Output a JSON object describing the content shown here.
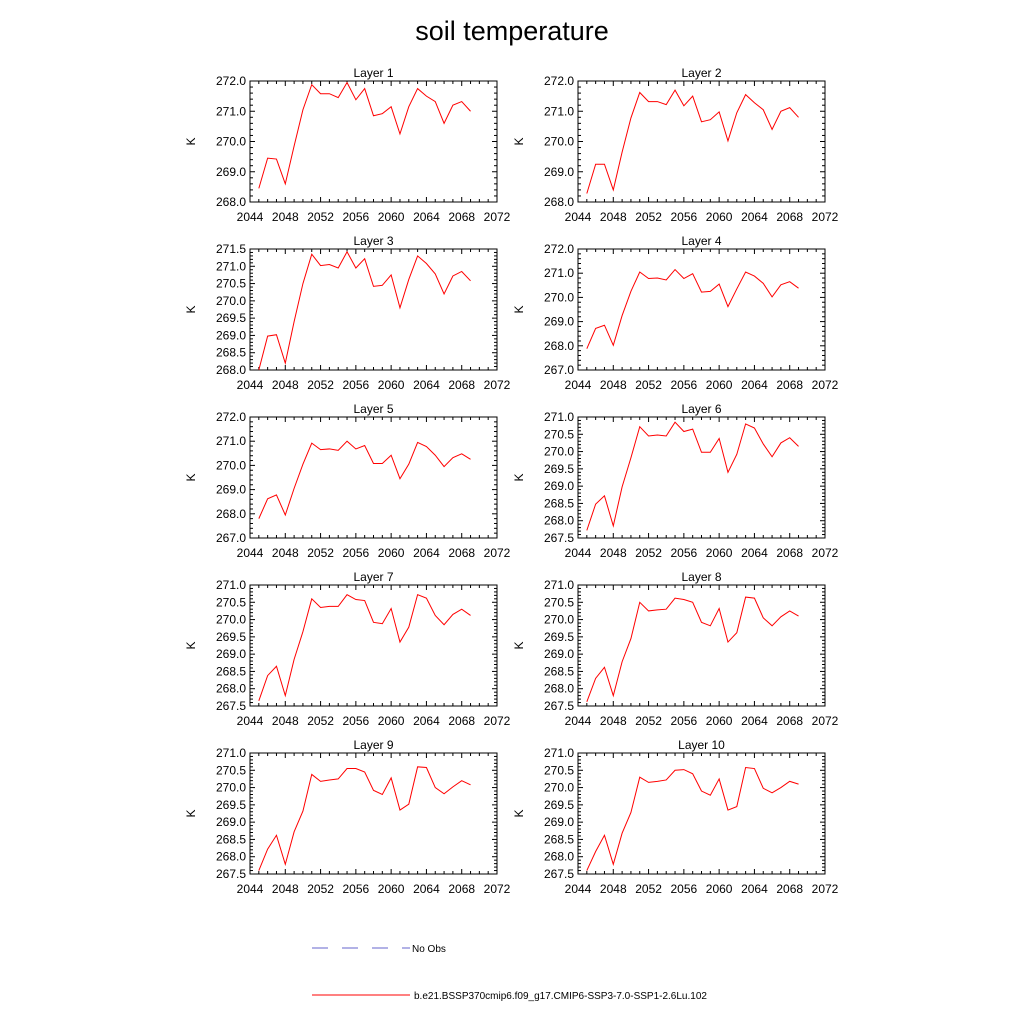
{
  "chart_data": {
    "type": "line",
    "title": "soil temperature",
    "x_ticks": [
      2044,
      2048,
      2052,
      2056,
      2060,
      2064,
      2068,
      2072
    ],
    "xlim": [
      2044,
      2072
    ],
    "x": [
      2045,
      2046,
      2047,
      2048,
      2049,
      2050,
      2051,
      2052,
      2053,
      2054,
      2055,
      2056,
      2057,
      2058,
      2059,
      2060,
      2061,
      2062,
      2063,
      2064,
      2065,
      2066,
      2067,
      2068,
      2069
    ],
    "ylabel": "K",
    "panels": [
      {
        "title": "Layer 1",
        "ylim": [
          268.0,
          272.0
        ],
        "y_ticks": [
          "268.0",
          "269.0",
          "270.0",
          "271.0",
          "272.0"
        ],
        "values": [
          268.45,
          269.45,
          269.42,
          268.6,
          269.85,
          271.05,
          271.88,
          271.58,
          271.58,
          271.45,
          271.95,
          271.38,
          271.75,
          270.85,
          270.92,
          271.15,
          270.25,
          271.15,
          271.75,
          271.5,
          271.32,
          270.6,
          271.2,
          271.32,
          271.0
        ]
      },
      {
        "title": "Layer 2",
        "ylim": [
          268.0,
          272.0
        ],
        "y_ticks": [
          "268.0",
          "269.0",
          "270.0",
          "271.0",
          "272.0"
        ],
        "values": [
          268.28,
          269.25,
          269.25,
          268.4,
          269.65,
          270.78,
          271.62,
          271.32,
          271.32,
          271.22,
          271.7,
          271.18,
          271.5,
          270.65,
          270.72,
          270.98,
          270.02,
          270.95,
          271.55,
          271.28,
          271.05,
          270.4,
          271.0,
          271.12,
          270.8
        ]
      },
      {
        "title": "Layer 3",
        "ylim": [
          268.0,
          271.5
        ],
        "y_ticks": [
          "268.0",
          "268.5",
          "269.0",
          "269.5",
          "270.0",
          "270.5",
          "271.0",
          "271.5"
        ],
        "values": [
          268.0,
          268.98,
          269.02,
          268.2,
          269.4,
          270.5,
          271.35,
          271.02,
          271.05,
          270.95,
          271.42,
          270.95,
          271.22,
          270.42,
          270.45,
          270.75,
          269.8,
          270.62,
          271.3,
          271.08,
          270.78,
          270.2,
          270.72,
          270.85,
          270.58
        ]
      },
      {
        "title": "Layer 4",
        "ylim": [
          267.0,
          272.0
        ],
        "y_ticks": [
          "267.0",
          "268.0",
          "269.0",
          "270.0",
          "271.0",
          "272.0"
        ],
        "values": [
          267.88,
          268.72,
          268.85,
          268.02,
          269.25,
          270.25,
          271.05,
          270.78,
          270.8,
          270.72,
          271.15,
          270.78,
          270.98,
          270.22,
          270.25,
          270.55,
          269.62,
          270.35,
          271.05,
          270.88,
          270.58,
          270.02,
          270.52,
          270.65,
          270.38
        ]
      },
      {
        "title": "Layer 5",
        "ylim": [
          267.0,
          272.0
        ],
        "y_ticks": [
          "267.0",
          "268.0",
          "269.0",
          "270.0",
          "271.0",
          "272.0"
        ],
        "values": [
          267.8,
          268.62,
          268.78,
          267.95,
          269.05,
          270.05,
          270.92,
          270.65,
          270.68,
          270.62,
          271.0,
          270.68,
          270.82,
          270.08,
          270.08,
          270.42,
          269.45,
          270.05,
          270.95,
          270.78,
          270.42,
          269.95,
          270.32,
          270.48,
          270.25
        ]
      },
      {
        "title": "Layer 6",
        "ylim": [
          267.5,
          271.0
        ],
        "y_ticks": [
          "267.5",
          "268.0",
          "268.5",
          "269.0",
          "269.5",
          "270.0",
          "270.5",
          "271.0"
        ],
        "values": [
          267.72,
          268.48,
          268.72,
          267.85,
          268.98,
          269.82,
          270.72,
          270.45,
          270.48,
          270.45,
          270.85,
          270.58,
          270.65,
          269.98,
          269.98,
          270.38,
          269.4,
          269.92,
          270.8,
          270.68,
          270.22,
          269.85,
          270.25,
          270.4,
          270.15
        ]
      },
      {
        "title": "Layer 7",
        "ylim": [
          267.5,
          271.0
        ],
        "y_ticks": [
          "267.5",
          "268.0",
          "268.5",
          "269.0",
          "269.5",
          "270.0",
          "270.5",
          "271.0"
        ],
        "values": [
          267.65,
          268.38,
          268.65,
          267.8,
          268.85,
          269.65,
          270.6,
          270.35,
          270.38,
          270.38,
          270.72,
          270.58,
          270.55,
          269.92,
          269.88,
          270.32,
          269.35,
          269.78,
          270.72,
          270.62,
          270.12,
          269.85,
          270.15,
          270.3,
          270.12
        ]
      },
      {
        "title": "Layer 8",
        "ylim": [
          267.5,
          271.0
        ],
        "y_ticks": [
          "267.5",
          "268.0",
          "268.5",
          "269.0",
          "269.5",
          "270.0",
          "270.5",
          "271.0"
        ],
        "values": [
          267.62,
          268.3,
          268.62,
          267.8,
          268.78,
          269.45,
          270.5,
          270.25,
          270.28,
          270.3,
          270.62,
          270.58,
          270.5,
          269.92,
          269.82,
          270.32,
          269.35,
          269.62,
          270.65,
          270.62,
          270.05,
          269.82,
          270.08,
          270.25,
          270.1
        ]
      },
      {
        "title": "Layer 9",
        "ylim": [
          267.5,
          271.0
        ],
        "y_ticks": [
          "267.5",
          "268.0",
          "268.5",
          "269.0",
          "269.5",
          "270.0",
          "270.5",
          "271.0"
        ],
        "values": [
          267.6,
          268.22,
          268.62,
          267.78,
          268.72,
          269.32,
          270.38,
          270.18,
          270.22,
          270.25,
          270.55,
          270.55,
          270.45,
          269.92,
          269.8,
          270.28,
          269.35,
          269.52,
          270.6,
          270.58,
          270.0,
          269.82,
          270.02,
          270.2,
          270.08
        ]
      },
      {
        "title": "Layer 10",
        "ylim": [
          267.5,
          271.0
        ],
        "y_ticks": [
          "267.5",
          "268.0",
          "268.5",
          "269.0",
          "269.5",
          "270.0",
          "270.5",
          "271.0"
        ],
        "values": [
          267.6,
          268.15,
          268.62,
          267.78,
          268.68,
          269.28,
          270.3,
          270.15,
          270.18,
          270.22,
          270.5,
          270.52,
          270.4,
          269.9,
          269.78,
          270.25,
          269.35,
          269.45,
          270.58,
          270.55,
          269.98,
          269.85,
          270.0,
          270.18,
          270.1
        ]
      }
    ],
    "legend": [
      {
        "label": "No Obs",
        "color": "#6666cc",
        "style": "dashed"
      },
      {
        "label": "b.e21.BSSP370cmip6.f09_g17.CMIP6-SSP3-7.0-SSP1-2.6Lu.102",
        "color": "#ff0000",
        "style": "solid"
      }
    ]
  }
}
